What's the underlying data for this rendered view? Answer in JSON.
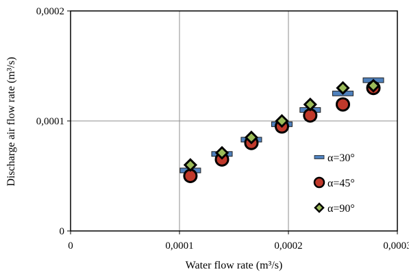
{
  "chart_data": {
    "type": "scatter",
    "title": "",
    "xlabel": "Water flow rate (m³/s)",
    "ylabel": "Discharge air flow rate (m³/s)",
    "xlim": [
      0,
      0.0003
    ],
    "ylim": [
      0,
      0.0002
    ],
    "x_ticks": [
      0,
      0.0001,
      0.0002,
      0.0003
    ],
    "x_tick_labels": [
      "0",
      "0,0001",
      "0,0002",
      "0,0003"
    ],
    "y_ticks": [
      0,
      0.0001,
      0.0002
    ],
    "y_tick_labels": [
      "0",
      "0,0001",
      "0,0002"
    ],
    "grid": true,
    "legend_position": "right",
    "series": [
      {
        "name": "α=30°",
        "marker": "dash",
        "color": "#4f81bd",
        "edge_color": "#1f1f1f",
        "x": [
          0.00011,
          0.000139,
          0.000166,
          0.000194,
          0.00022,
          0.00025,
          0.000278
        ],
        "y": [
          5.5e-05,
          7e-05,
          8.3e-05,
          9.7e-05,
          0.00011,
          0.000125,
          0.000137
        ]
      },
      {
        "name": "α=45°",
        "marker": "circle",
        "color": "#c0392b",
        "edge_color": "#000000",
        "x": [
          0.00011,
          0.000139,
          0.000166,
          0.000194,
          0.00022,
          0.00025,
          0.000278
        ],
        "y": [
          5e-05,
          6.5e-05,
          8e-05,
          9.5e-05,
          0.000105,
          0.000115,
          0.00013
        ]
      },
      {
        "name": "α=90°",
        "marker": "diamond",
        "color": "#9bbb59",
        "edge_color": "#000000",
        "x": [
          0.00011,
          0.000139,
          0.000166,
          0.000194,
          0.00022,
          0.00025,
          0.000278
        ],
        "y": [
          6e-05,
          7.1e-05,
          8.5e-05,
          0.0001,
          0.000115,
          0.00013,
          0.000132
        ]
      }
    ]
  }
}
